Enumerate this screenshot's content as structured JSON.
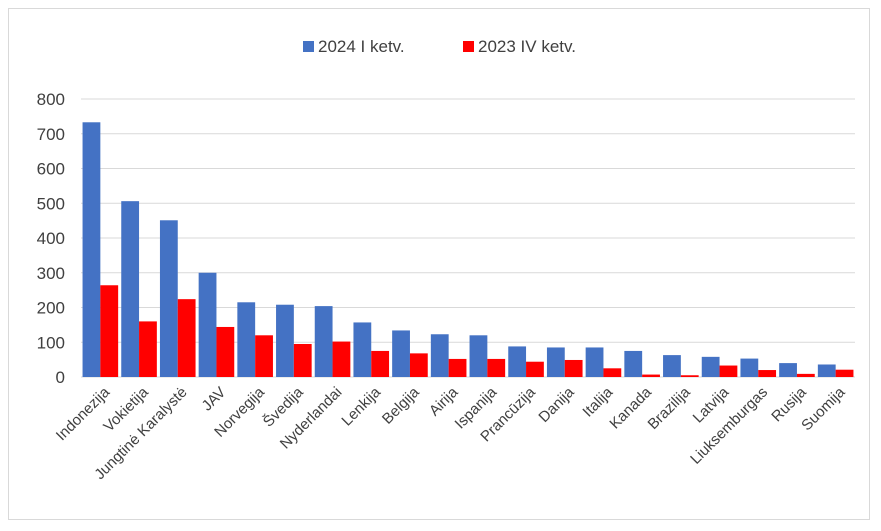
{
  "chart_data": {
    "type": "bar",
    "categories": [
      "Indonezija",
      "Vokietija",
      "Jungtinė Karalystė",
      "JAV",
      "Norvegija",
      "Švedija",
      "Nyderlandai",
      "Lenkija",
      "Belgija",
      "Airija",
      "Ispanija",
      "Prancūzija",
      "Danija",
      "Italija",
      "Kanada",
      "Brazilija",
      "Latvija",
      "Liuksemburgas",
      "Rusija",
      "Suomija"
    ],
    "series": [
      {
        "name": "2024 I ketv.",
        "color": "#4472c4",
        "values": [
          733,
          506,
          451,
          300,
          215,
          208,
          204,
          157,
          134,
          123,
          120,
          88,
          85,
          85,
          75,
          63,
          58,
          53,
          40,
          36
        ]
      },
      {
        "name": "2023 IV ketv.",
        "color": "#ff0000",
        "values": [
          264,
          160,
          224,
          144,
          120,
          95,
          102,
          75,
          68,
          52,
          52,
          44,
          49,
          25,
          7,
          5,
          33,
          20,
          9,
          21
        ]
      }
    ],
    "yticks": [
      "0",
      "100",
      "200",
      "300",
      "400",
      "500",
      "600",
      "700",
      "800"
    ],
    "ylim": [
      0,
      800
    ],
    "grid": true,
    "legend_position": "top-center",
    "title": "",
    "xlabel": "",
    "ylabel": ""
  }
}
